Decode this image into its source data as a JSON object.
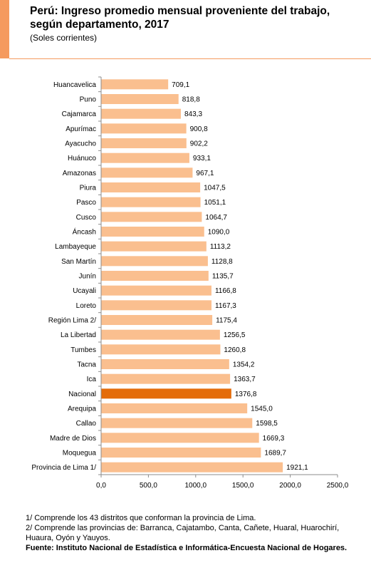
{
  "header": {
    "title": "Perú: Ingreso promedio mensual proveniente del trabajo, según departamento, 2017",
    "subtitle": "(Soles corrientes)",
    "accent_color": "#F59A5E"
  },
  "chart_data": {
    "type": "bar",
    "orientation": "horizontal",
    "title": "Perú: Ingreso promedio mensual proveniente del trabajo, según departamento, 2017",
    "subtitle": "(Soles corrientes)",
    "categories": [
      "Huancavelica",
      "Puno",
      "Cajamarca",
      "Apurímac",
      "Ayacucho",
      "Huánuco",
      "Amazonas",
      "Piura",
      "Pasco",
      "Cusco",
      "Áncash",
      "Lambayeque",
      "San Martín",
      "Junín",
      "Ucayali",
      "Loreto",
      "Región Lima 2/",
      "La Libertad",
      "Tumbes",
      "Tacna",
      "Ica",
      "Nacional",
      "Arequipa",
      "Callao",
      "Madre de Dios",
      "Moquegua",
      "Provincia de Lima 1/"
    ],
    "values": [
      709.1,
      818.8,
      843.3,
      900.8,
      902.2,
      933.1,
      967.1,
      1047.5,
      1051.1,
      1064.7,
      1090.0,
      1113.2,
      1128.8,
      1135.7,
      1166.8,
      1167.3,
      1175.4,
      1256.5,
      1260.8,
      1354.2,
      1363.7,
      1376.8,
      1545.0,
      1598.5,
      1669.3,
      1689.7,
      1921.1
    ],
    "value_labels": [
      "709,1",
      "818,8",
      "843,3",
      "900,8",
      "902,2",
      "933,1",
      "967,1",
      "1047,5",
      "1051,1",
      "1064,7",
      "1090,0",
      "1113,2",
      "1128,8",
      "1135,7",
      "1166,8",
      "1167,3",
      "1175,4",
      "1256,5",
      "1260,8",
      "1354,2",
      "1363,7",
      "1376,8",
      "1545,0",
      "1598,5",
      "1669,3",
      "1689,7",
      "1921,1"
    ],
    "highlight_category": "Nacional",
    "xlim": [
      0,
      2500
    ],
    "x_ticks": [
      0,
      500,
      1000,
      1500,
      2000,
      2500
    ],
    "x_tick_labels": [
      "0,0",
      "500,0",
      "1000,0",
      "1500,0",
      "2000,0",
      "2500,0"
    ],
    "grid": false,
    "colors": {
      "bar": "#FABF8F",
      "highlight": "#E46C0A"
    }
  },
  "notes": {
    "note1": "1/ Comprende los 43 distritos  que conforman la provincia de Lima.",
    "note2": "2/ Comprende las provincias de: Barranca, Cajatambo, Canta, Cañete, Huaral, Huarochirí, Huaura, Oyón y Yauyos.",
    "source": "Fuente: Instituto Nacional de Estadística e Informática-Encuesta Nacional de Hogares."
  }
}
